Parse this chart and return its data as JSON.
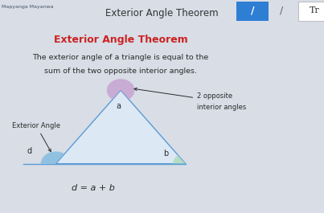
{
  "title": "Exterior Angle Theorem",
  "card_title": "Exterior Angle Theorem",
  "description_line1": "The exterior angle of a triangle is equal to the",
  "description_line2": "sum of the two opposite interior angles.",
  "formula": "d = a + b",
  "label_exterior": "Exterior Angle",
  "label_d": "d",
  "label_a": "a",
  "label_b": "b",
  "label_2opposite_1": "2 opposite",
  "label_2opposite_2": "interior angles",
  "overall_bg": "#d8dde6",
  "card_bg": "#f7f8fa",
  "right_panel_bg": "#e8eaed",
  "card_title_color": "#cc2222",
  "text_color": "#2a2a2a",
  "triangle_line_color": "#5b9bd5",
  "triangle_fill_color": "#dce9f5",
  "wedge_d_color": "#7ab8e0",
  "wedge_a_color": "#c4a0d0",
  "wedge_b_color": "#a8d8b8",
  "pencil_box_color": "#2e7fd4",
  "page_title_color": "#333333",
  "header_text": "Exterior Angle Theorem",
  "header_user": "Mapyanga Mayanwa",
  "header_bg": "#c8cdd8"
}
